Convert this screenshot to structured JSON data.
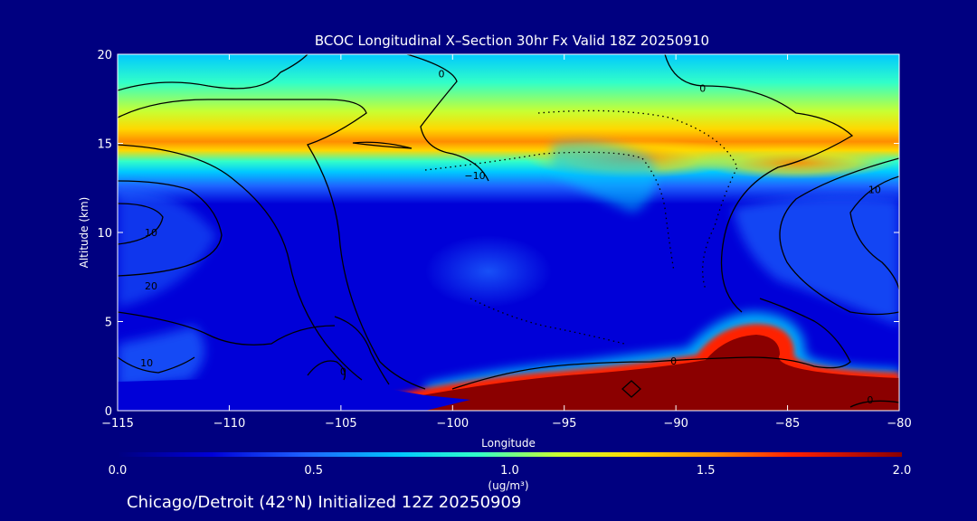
{
  "chart_data": {
    "type": "heatmap",
    "title": "BCOC Longitudinal X–Section 30hr  Fx Valid 18Z 20250910",
    "xlabel": "Longitude",
    "ylabel": "Altitude (km)",
    "xlim": [
      -115,
      -80
    ],
    "ylim": [
      0,
      20
    ],
    "x_ticks": [
      -115,
      -110,
      -105,
      -100,
      -95,
      -90,
      -85,
      -80
    ],
    "y_ticks": [
      0,
      5,
      10,
      15,
      20
    ],
    "x_tick_labels": [
      "−115",
      "−110",
      "−105",
      "−100",
      "−95",
      "−90",
      "−85",
      "−80"
    ],
    "y_tick_labels": [
      "0",
      "5",
      "10",
      "15",
      "20"
    ],
    "colorbar": {
      "min": 0.0,
      "max": 2.0,
      "ticks": [
        0.0,
        0.5,
        1.0,
        1.5,
        2.0
      ],
      "tick_labels": [
        "0.0",
        "0.5",
        "1.0",
        "1.5",
        "2.0"
      ],
      "unit_label": "(ug/m³)"
    },
    "colors": [
      "#000080",
      "#0000d8",
      "#1e64ff",
      "#00c8ff",
      "#32ffc8",
      "#c8ff32",
      "#ffd700",
      "#ff8c00",
      "#ff2000",
      "#8b0000"
    ],
    "contour_labels": [
      {
        "text": "0",
        "x": -100.5,
        "y": 18.9
      },
      {
        "text": "0",
        "x": -88.8,
        "y": 18.1
      },
      {
        "text": "−10",
        "x": -99.0,
        "y": 13.2
      },
      {
        "text": "10",
        "x": -81.1,
        "y": 12.4
      },
      {
        "text": "10",
        "x": -113.5,
        "y": 10.0
      },
      {
        "text": "20",
        "x": -113.5,
        "y": 7.0
      },
      {
        "text": "10",
        "x": -113.7,
        "y": 2.7
      },
      {
        "text": "0",
        "x": -104.9,
        "y": 2.2
      },
      {
        "text": "0",
        "x": -90.1,
        "y": 2.8
      },
      {
        "text": "0",
        "x": -81.3,
        "y": 0.6
      }
    ],
    "footer_text": "Chicago/Detroit (42°N) Initialized 12Z 20250909"
  }
}
